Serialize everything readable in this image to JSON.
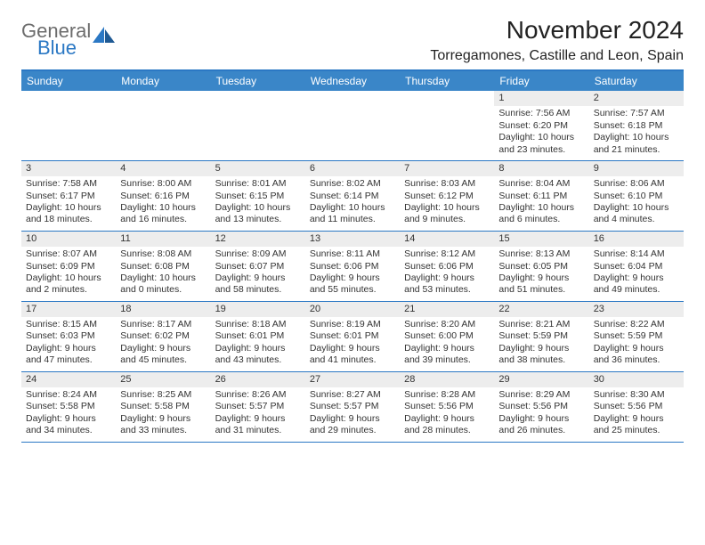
{
  "brand": {
    "line1": "General",
    "line2": "Blue",
    "text_color": "#6c6c6c",
    "accent_color": "#2b78c4"
  },
  "title": "November 2024",
  "location": "Torregamones, Castille and Leon, Spain",
  "day_headers": [
    "Sunday",
    "Monday",
    "Tuesday",
    "Wednesday",
    "Thursday",
    "Friday",
    "Saturday"
  ],
  "colors": {
    "header_bg": "#3a86c8",
    "header_text": "#ffffff",
    "rule": "#2b78c4",
    "daynum_bg": "#ededed",
    "body_text": "#333333",
    "page_bg": "#ffffff"
  },
  "weeks": [
    [
      {
        "empty": true
      },
      {
        "empty": true
      },
      {
        "empty": true
      },
      {
        "empty": true
      },
      {
        "empty": true
      },
      {
        "day": "1",
        "sunrise": "7:56 AM",
        "sunset": "6:20 PM",
        "daylight": "10 hours and 23 minutes."
      },
      {
        "day": "2",
        "sunrise": "7:57 AM",
        "sunset": "6:18 PM",
        "daylight": "10 hours and 21 minutes."
      }
    ],
    [
      {
        "day": "3",
        "sunrise": "7:58 AM",
        "sunset": "6:17 PM",
        "daylight": "10 hours and 18 minutes."
      },
      {
        "day": "4",
        "sunrise": "8:00 AM",
        "sunset": "6:16 PM",
        "daylight": "10 hours and 16 minutes."
      },
      {
        "day": "5",
        "sunrise": "8:01 AM",
        "sunset": "6:15 PM",
        "daylight": "10 hours and 13 minutes."
      },
      {
        "day": "6",
        "sunrise": "8:02 AM",
        "sunset": "6:14 PM",
        "daylight": "10 hours and 11 minutes."
      },
      {
        "day": "7",
        "sunrise": "8:03 AM",
        "sunset": "6:12 PM",
        "daylight": "10 hours and 9 minutes."
      },
      {
        "day": "8",
        "sunrise": "8:04 AM",
        "sunset": "6:11 PM",
        "daylight": "10 hours and 6 minutes."
      },
      {
        "day": "9",
        "sunrise": "8:06 AM",
        "sunset": "6:10 PM",
        "daylight": "10 hours and 4 minutes."
      }
    ],
    [
      {
        "day": "10",
        "sunrise": "8:07 AM",
        "sunset": "6:09 PM",
        "daylight": "10 hours and 2 minutes."
      },
      {
        "day": "11",
        "sunrise": "8:08 AM",
        "sunset": "6:08 PM",
        "daylight": "10 hours and 0 minutes."
      },
      {
        "day": "12",
        "sunrise": "8:09 AM",
        "sunset": "6:07 PM",
        "daylight": "9 hours and 58 minutes."
      },
      {
        "day": "13",
        "sunrise": "8:11 AM",
        "sunset": "6:06 PM",
        "daylight": "9 hours and 55 minutes."
      },
      {
        "day": "14",
        "sunrise": "8:12 AM",
        "sunset": "6:06 PM",
        "daylight": "9 hours and 53 minutes."
      },
      {
        "day": "15",
        "sunrise": "8:13 AM",
        "sunset": "6:05 PM",
        "daylight": "9 hours and 51 minutes."
      },
      {
        "day": "16",
        "sunrise": "8:14 AM",
        "sunset": "6:04 PM",
        "daylight": "9 hours and 49 minutes."
      }
    ],
    [
      {
        "day": "17",
        "sunrise": "8:15 AM",
        "sunset": "6:03 PM",
        "daylight": "9 hours and 47 minutes."
      },
      {
        "day": "18",
        "sunrise": "8:17 AM",
        "sunset": "6:02 PM",
        "daylight": "9 hours and 45 minutes."
      },
      {
        "day": "19",
        "sunrise": "8:18 AM",
        "sunset": "6:01 PM",
        "daylight": "9 hours and 43 minutes."
      },
      {
        "day": "20",
        "sunrise": "8:19 AM",
        "sunset": "6:01 PM",
        "daylight": "9 hours and 41 minutes."
      },
      {
        "day": "21",
        "sunrise": "8:20 AM",
        "sunset": "6:00 PM",
        "daylight": "9 hours and 39 minutes."
      },
      {
        "day": "22",
        "sunrise": "8:21 AM",
        "sunset": "5:59 PM",
        "daylight": "9 hours and 38 minutes."
      },
      {
        "day": "23",
        "sunrise": "8:22 AM",
        "sunset": "5:59 PM",
        "daylight": "9 hours and 36 minutes."
      }
    ],
    [
      {
        "day": "24",
        "sunrise": "8:24 AM",
        "sunset": "5:58 PM",
        "daylight": "9 hours and 34 minutes."
      },
      {
        "day": "25",
        "sunrise": "8:25 AM",
        "sunset": "5:58 PM",
        "daylight": "9 hours and 33 minutes."
      },
      {
        "day": "26",
        "sunrise": "8:26 AM",
        "sunset": "5:57 PM",
        "daylight": "9 hours and 31 minutes."
      },
      {
        "day": "27",
        "sunrise": "8:27 AM",
        "sunset": "5:57 PM",
        "daylight": "9 hours and 29 minutes."
      },
      {
        "day": "28",
        "sunrise": "8:28 AM",
        "sunset": "5:56 PM",
        "daylight": "9 hours and 28 minutes."
      },
      {
        "day": "29",
        "sunrise": "8:29 AM",
        "sunset": "5:56 PM",
        "daylight": "9 hours and 26 minutes."
      },
      {
        "day": "30",
        "sunrise": "8:30 AM",
        "sunset": "5:56 PM",
        "daylight": "9 hours and 25 minutes."
      }
    ]
  ],
  "labels": {
    "sunrise": "Sunrise:",
    "sunset": "Sunset:",
    "daylight": "Daylight:"
  }
}
